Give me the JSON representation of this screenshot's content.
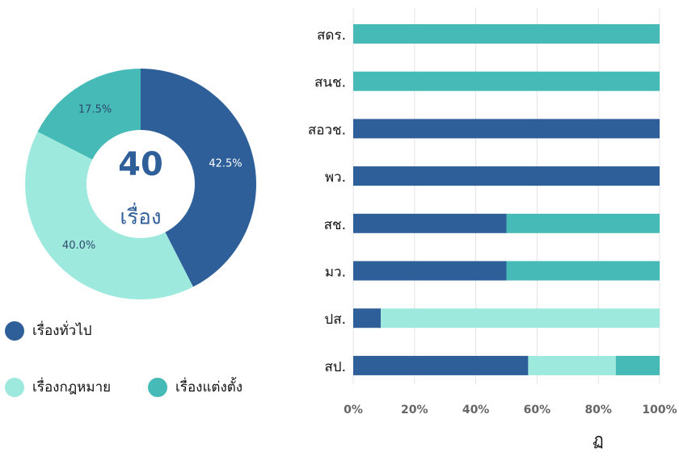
{
  "chart_data": [
    {
      "type": "pie",
      "categories": [
        "เรื่องทั่วไป",
        "เรื่องกฎหมาย",
        "เรื่องแต่งตั้ง"
      ],
      "values": [
        42.5,
        40.0,
        17.5
      ],
      "value_labels": [
        "42.5%",
        "40.0%",
        "17.5%"
      ],
      "colors": [
        "#2e5f99",
        "#9ee9de",
        "#45bab6"
      ],
      "center_value": "40",
      "center_label": "เรื่อง"
    },
    {
      "type": "bar",
      "orientation": "horizontal",
      "stacked": true,
      "categories": [
        "สดร.",
        "สนช.",
        "สอวช.",
        "พว.",
        "สช.",
        "มว.",
        "ปส.",
        "สป."
      ],
      "series": [
        {
          "color": "#2e5f99",
          "values": [
            0,
            0,
            100,
            100,
            50,
            50,
            9,
            57.1
          ]
        },
        {
          "color": "#9ee9de",
          "values": [
            0,
            0,
            0,
            0,
            0,
            0,
            91,
            28.6
          ]
        },
        {
          "color": "#45bab6",
          "values": [
            100,
            100,
            0,
            0,
            50,
            50,
            0,
            14.3
          ]
        }
      ],
      "xlim": [
        0,
        100
      ],
      "xticks": [
        {
          "value": 0,
          "label": "0%"
        },
        {
          "value": 20,
          "label": "20%"
        },
        {
          "value": 40,
          "label": "40%"
        },
        {
          "value": 60,
          "label": "60%"
        },
        {
          "value": 80,
          "label": "80%"
        },
        {
          "value": 100,
          "label": "100%"
        }
      ],
      "grid": true,
      "annotation": "ฏ"
    }
  ]
}
